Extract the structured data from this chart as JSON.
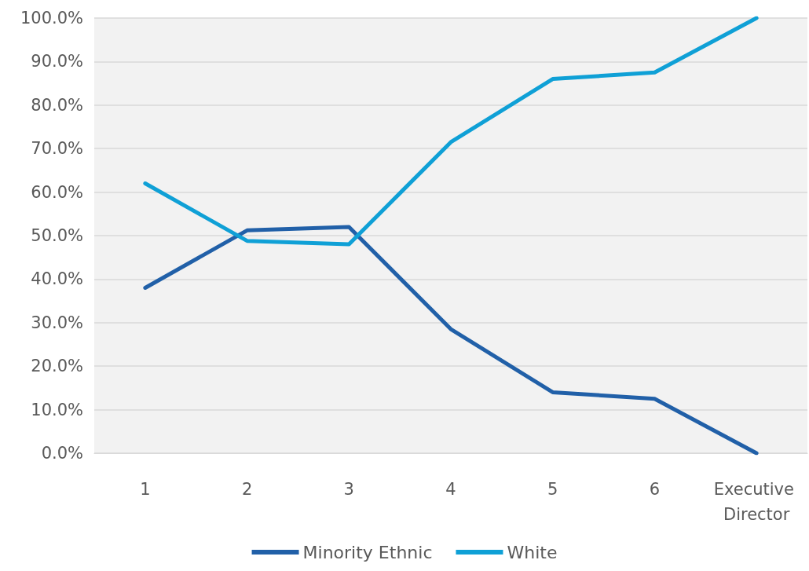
{
  "chart_data": {
    "type": "line",
    "categories": [
      "1",
      "2",
      "3",
      "4",
      "5",
      "6",
      "Executive Director"
    ],
    "series": [
      {
        "name": "Minority Ethnic",
        "color": "#2160a8",
        "values": [
          38.0,
          51.2,
          52.0,
          28.5,
          14.0,
          12.5,
          0.0
        ]
      },
      {
        "name": "White",
        "color": "#0fa0d6",
        "values": [
          62.0,
          48.8,
          48.0,
          71.5,
          86.0,
          87.5,
          100.0
        ]
      }
    ],
    "ylim": [
      0,
      100
    ],
    "yticks": [
      {
        "value": 0,
        "label": "0.0%"
      },
      {
        "value": 10,
        "label": "10.0%"
      },
      {
        "value": 20,
        "label": "20.0%"
      },
      {
        "value": 30,
        "label": "30.0%"
      },
      {
        "value": 40,
        "label": "40.0%"
      },
      {
        "value": 50,
        "label": "50.0%"
      },
      {
        "value": 60,
        "label": "60.0%"
      },
      {
        "value": 70,
        "label": "70.0%"
      },
      {
        "value": 80,
        "label": "80.0%"
      },
      {
        "value": 90,
        "label": "90.0%"
      },
      {
        "value": 100,
        "label": "100.0%"
      }
    ],
    "grid": "y",
    "legend": "bottom",
    "marker": "none",
    "line_style": "solid"
  }
}
